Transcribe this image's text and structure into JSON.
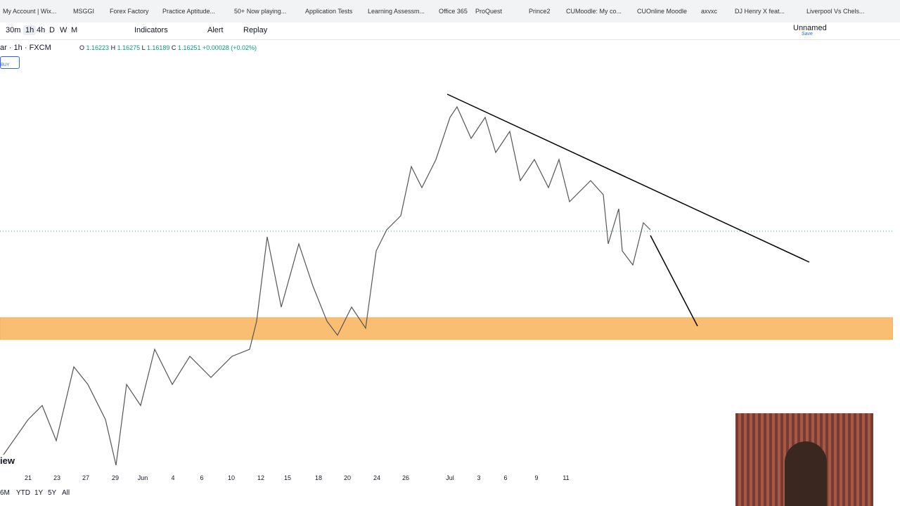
{
  "bookmarks": [
    "My Account | Wix...",
    "MSGGI",
    "Forex Factory",
    "Practice Aptitude...",
    "50+ Now playing...",
    "Application Tests",
    "Learning Assessm...",
    "Office 365",
    "ProQuest",
    "Prince2",
    "CUMoodle: My co...",
    "CUOnline Moodle",
    "axvxc",
    "DJ Henry X feat...",
    "Liverpool Vs Chels..."
  ],
  "toolbar": {
    "intervals": [
      "30m",
      "1h",
      "4h",
      "D",
      "W",
      "M"
    ],
    "indicators": "Indicators",
    "alert": "Alert",
    "replay": "Replay",
    "layout_name": "Unnamed",
    "save": "Save"
  },
  "symbol": {
    "name": "ar · 1h · FXCM",
    "open_label": "O",
    "open": "1.16223",
    "high_label": "H",
    "high": "1.16275",
    "low_label": "L",
    "low": "1.16189",
    "close_label": "C",
    "close": "1.16251",
    "change": "+0.00028 (+0.02%)",
    "buy": "BUY"
  },
  "date_labels": [
    "21",
    "23",
    "27",
    "29",
    "Jun",
    "4",
    "6",
    "10",
    "12",
    "15",
    "18",
    "20",
    "24",
    "26",
    "Jul",
    "3",
    "6",
    "9",
    "11"
  ],
  "ranges": [
    "6M",
    "YTD",
    "1Y",
    "5Y",
    "All"
  ],
  "watermark": "iew"
}
